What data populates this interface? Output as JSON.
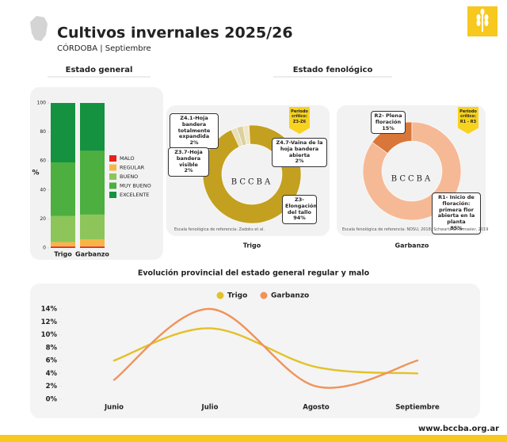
{
  "header": {
    "title": "Cultivos invernales 2025/26",
    "subtitle": "CÓRDOBA | Septiembre"
  },
  "section_titles": [
    "Estado general",
    "Estado fenológico"
  ],
  "chart_data": [
    {
      "type": "bar",
      "stacked": true,
      "ylabel": "%",
      "categories": [
        "Trigo",
        "Garbanzo"
      ],
      "series": [
        {
          "name": "MALO",
          "color": "#e8211b",
          "values": [
            1,
            1
          ]
        },
        {
          "name": "REGULAR",
          "color": "#f7b548",
          "values": [
            3,
            5
          ]
        },
        {
          "name": "BUENO",
          "color": "#8dc55a",
          "values": [
            18,
            17
          ]
        },
        {
          "name": "MUY BUENO",
          "color": "#4caf3f",
          "values": [
            37,
            44
          ]
        },
        {
          "name": "EXCELENTE",
          "color": "#14923f",
          "values": [
            41,
            33
          ]
        }
      ],
      "ylim": [
        0,
        100
      ],
      "yticks": [
        0,
        20,
        40,
        60,
        80,
        100
      ]
    },
    {
      "type": "pie",
      "donut": true,
      "caption": "Trigo",
      "watermark": "BCCBA",
      "badge": "Período crítico: Z3-Z6",
      "source": "Escala fenológica de referencia: Zadoks et al.",
      "categories": [
        "Z4.1-Hoja bandera totalmente expandida",
        "Z3.7-Hoja bandera visible",
        "Z4.7-Vaina de la hoja bandera abierta",
        "Z3-Elongación del tallo"
      ],
      "values": [
        2,
        2,
        2,
        94
      ],
      "value_labels": [
        "2%",
        "2%",
        "2%",
        "94%"
      ],
      "colors": [
        "#e9dfb8",
        "#ddd0a0",
        "#efe7c8",
        "#c4a020"
      ]
    },
    {
      "type": "pie",
      "donut": true,
      "caption": "Garbanzo",
      "watermark": "BCCBA",
      "badge": "Período crítico: R1 - R3",
      "source": "Escala fenológica de referencia: NDSU, 2018; Schwartz & Ramseier, 2019",
      "categories": [
        "R2- Plena floración",
        "R1- Inicio de floración: primera flor abierta en la planta"
      ],
      "values": [
        15,
        85
      ],
      "value_labels": [
        "15%",
        "85%"
      ],
      "colors": [
        "#d9763a",
        "#f6b995"
      ]
    },
    {
      "type": "line",
      "title": "Evolución provincial del estado general regular y malo",
      "categories": [
        "Junio",
        "Julio",
        "Agosto",
        "Septiembre"
      ],
      "series": [
        {
          "name": "Trigo",
          "color": "#e3c12a",
          "values": [
            6,
            11,
            5,
            4
          ]
        },
        {
          "name": "Garbanzo",
          "color": "#f0935a",
          "values": [
            3,
            14,
            2,
            6
          ]
        }
      ],
      "ylim": [
        0,
        14
      ],
      "yticks": [
        {
          "value": 0,
          "label": "0%"
        },
        {
          "value": 2,
          "label": "2%"
        },
        {
          "value": 4,
          "label": "4%"
        },
        {
          "value": 6,
          "label": "6%"
        },
        {
          "value": 8,
          "label": "8%"
        },
        {
          "value": 10,
          "label": "10%"
        },
        {
          "value": 12,
          "label": "12%"
        },
        {
          "value": 14,
          "label": "14%"
        }
      ],
      "legend": "top"
    }
  ],
  "footer": "www.bccba.org.ar"
}
